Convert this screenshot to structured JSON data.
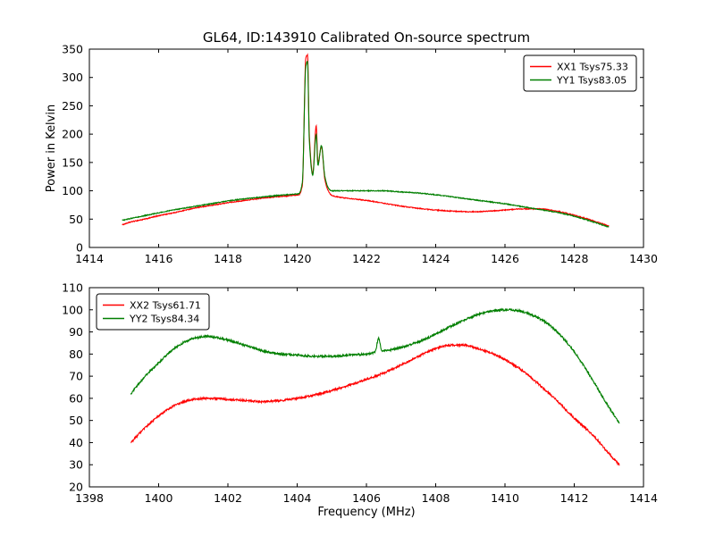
{
  "figure": {
    "background": "#ffffff",
    "axes_color": "#000000"
  },
  "chart_data": [
    {
      "type": "line",
      "title": "GL64, ID:143910 Calibrated On-source spectrum",
      "xlabel": "",
      "ylabel": "Power in Kelvin",
      "xlim": [
        1414,
        1430
      ],
      "ylim": [
        0,
        350
      ],
      "xticks": [
        1414,
        1416,
        1418,
        1420,
        1422,
        1424,
        1426,
        1428,
        1430
      ],
      "yticks": [
        0,
        50,
        100,
        150,
        200,
        250,
        300,
        350
      ],
      "grid": false,
      "legend_position": "upper-right",
      "series": [
        {
          "name": "XX1 Tsys75.33",
          "color": "#ff0000",
          "noise": 1.5,
          "points": [
            [
              1414.95,
              40
            ],
            [
              1415.2,
              45
            ],
            [
              1415.6,
              50
            ],
            [
              1416,
              56
            ],
            [
              1416.5,
              62
            ],
            [
              1417,
              69
            ],
            [
              1417.5,
              74
            ],
            [
              1418,
              79
            ],
            [
              1418.5,
              83
            ],
            [
              1419,
              87
            ],
            [
              1419.5,
              90
            ],
            [
              1419.9,
              92
            ],
            [
              1420.05,
              93
            ],
            [
              1420.15,
              110
            ],
            [
              1420.25,
              335
            ],
            [
              1420.3,
              340
            ],
            [
              1420.35,
              200
            ],
            [
              1420.45,
              130
            ],
            [
              1420.55,
              215
            ],
            [
              1420.6,
              150
            ],
            [
              1420.7,
              178
            ],
            [
              1420.8,
              120
            ],
            [
              1420.9,
              100
            ],
            [
              1421,
              92
            ],
            [
              1421.3,
              88
            ],
            [
              1421.6,
              86
            ],
            [
              1422,
              83
            ],
            [
              1422.5,
              78
            ],
            [
              1423,
              73
            ],
            [
              1423.5,
              69
            ],
            [
              1424,
              66
            ],
            [
              1424.5,
              64
            ],
            [
              1425,
              63
            ],
            [
              1425.5,
              64
            ],
            [
              1426,
              66
            ],
            [
              1426.5,
              68
            ],
            [
              1427,
              68
            ],
            [
              1427.5,
              64
            ],
            [
              1428,
              57
            ],
            [
              1428.5,
              48
            ],
            [
              1429,
              38
            ]
          ]
        },
        {
          "name": "YY1 Tsys83.05",
          "color": "#007f00",
          "noise": 1.5,
          "points": [
            [
              1414.95,
              48
            ],
            [
              1415.5,
              55
            ],
            [
              1416,
              61
            ],
            [
              1416.5,
              67
            ],
            [
              1417,
              72
            ],
            [
              1417.5,
              77
            ],
            [
              1418,
              82
            ],
            [
              1418.5,
              86
            ],
            [
              1419,
              89
            ],
            [
              1419.5,
              92
            ],
            [
              1419.9,
              94
            ],
            [
              1420.05,
              95
            ],
            [
              1420.15,
              115
            ],
            [
              1420.25,
              320
            ],
            [
              1420.3,
              328
            ],
            [
              1420.35,
              190
            ],
            [
              1420.45,
              128
            ],
            [
              1420.55,
              200
            ],
            [
              1420.6,
              145
            ],
            [
              1420.7,
              180
            ],
            [
              1420.8,
              125
            ],
            [
              1420.9,
              105
            ],
            [
              1421,
              100
            ],
            [
              1421.5,
              100
            ],
            [
              1422,
              100
            ],
            [
              1422.5,
              100
            ],
            [
              1423,
              98
            ],
            [
              1423.5,
              96
            ],
            [
              1424,
              93
            ],
            [
              1424.5,
              89
            ],
            [
              1425,
              85
            ],
            [
              1425.5,
              81
            ],
            [
              1426,
              77
            ],
            [
              1426.5,
              72
            ],
            [
              1427,
              67
            ],
            [
              1427.5,
              62
            ],
            [
              1428,
              55
            ],
            [
              1428.5,
              46
            ],
            [
              1429,
              36
            ]
          ]
        }
      ]
    },
    {
      "type": "line",
      "title": "",
      "xlabel": "Frequency (MHz)",
      "ylabel": "",
      "xlim": [
        1398,
        1414
      ],
      "ylim": [
        20,
        110
      ],
      "xticks": [
        1398,
        1400,
        1402,
        1404,
        1406,
        1408,
        1410,
        1412,
        1414
      ],
      "yticks": [
        20,
        30,
        40,
        50,
        60,
        70,
        80,
        90,
        100,
        110
      ],
      "grid": false,
      "legend_position": "upper-left",
      "series": [
        {
          "name": "XX2 Tsys61.71",
          "color": "#ff0000",
          "noise": 0.9,
          "points": [
            [
              1399.2,
              40
            ],
            [
              1399.5,
              45
            ],
            [
              1400,
              52
            ],
            [
              1400.5,
              57
            ],
            [
              1401,
              59.5
            ],
            [
              1401.5,
              60
            ],
            [
              1402,
              59.5
            ],
            [
              1402.5,
              59
            ],
            [
              1403,
              58.5
            ],
            [
              1403.5,
              59
            ],
            [
              1404,
              60
            ],
            [
              1404.5,
              61.5
            ],
            [
              1405,
              63.5
            ],
            [
              1405.5,
              66
            ],
            [
              1406,
              68.5
            ],
            [
              1406.5,
              71.5
            ],
            [
              1407,
              75
            ],
            [
              1407.5,
              79
            ],
            [
              1408,
              82.5
            ],
            [
              1408.4,
              84
            ],
            [
              1408.8,
              84
            ],
            [
              1409.2,
              82.5
            ],
            [
              1409.6,
              80.5
            ],
            [
              1410,
              77.5
            ],
            [
              1410.5,
              72.5
            ],
            [
              1411,
              66
            ],
            [
              1411.5,
              59
            ],
            [
              1412,
              51
            ],
            [
              1412.5,
              44
            ],
            [
              1413,
              35
            ],
            [
              1413.3,
              30
            ]
          ]
        },
        {
          "name": "YY2 Tsys84.34",
          "color": "#007f00",
          "noise": 0.9,
          "points": [
            [
              1399.2,
              62
            ],
            [
              1399.5,
              68
            ],
            [
              1400,
              76
            ],
            [
              1400.5,
              83
            ],
            [
              1401,
              87
            ],
            [
              1401.4,
              88
            ],
            [
              1401.8,
              87
            ],
            [
              1402.2,
              85.5
            ],
            [
              1402.6,
              83.5
            ],
            [
              1403,
              81.5
            ],
            [
              1403.5,
              80
            ],
            [
              1404,
              79.5
            ],
            [
              1404.5,
              79
            ],
            [
              1405,
              79
            ],
            [
              1405.5,
              79.5
            ],
            [
              1406,
              80
            ],
            [
              1406.25,
              81
            ],
            [
              1406.35,
              87
            ],
            [
              1406.45,
              81.5
            ],
            [
              1407,
              83
            ],
            [
              1407.5,
              85.5
            ],
            [
              1408,
              89
            ],
            [
              1408.5,
              93
            ],
            [
              1409,
              96.5
            ],
            [
              1409.5,
              99
            ],
            [
              1410,
              100
            ],
            [
              1410.4,
              99.5
            ],
            [
              1410.8,
              97.5
            ],
            [
              1411.2,
              94
            ],
            [
              1411.6,
              88.5
            ],
            [
              1412,
              81
            ],
            [
              1412.5,
              69
            ],
            [
              1413,
              56
            ],
            [
              1413.3,
              49
            ]
          ]
        }
      ]
    }
  ]
}
